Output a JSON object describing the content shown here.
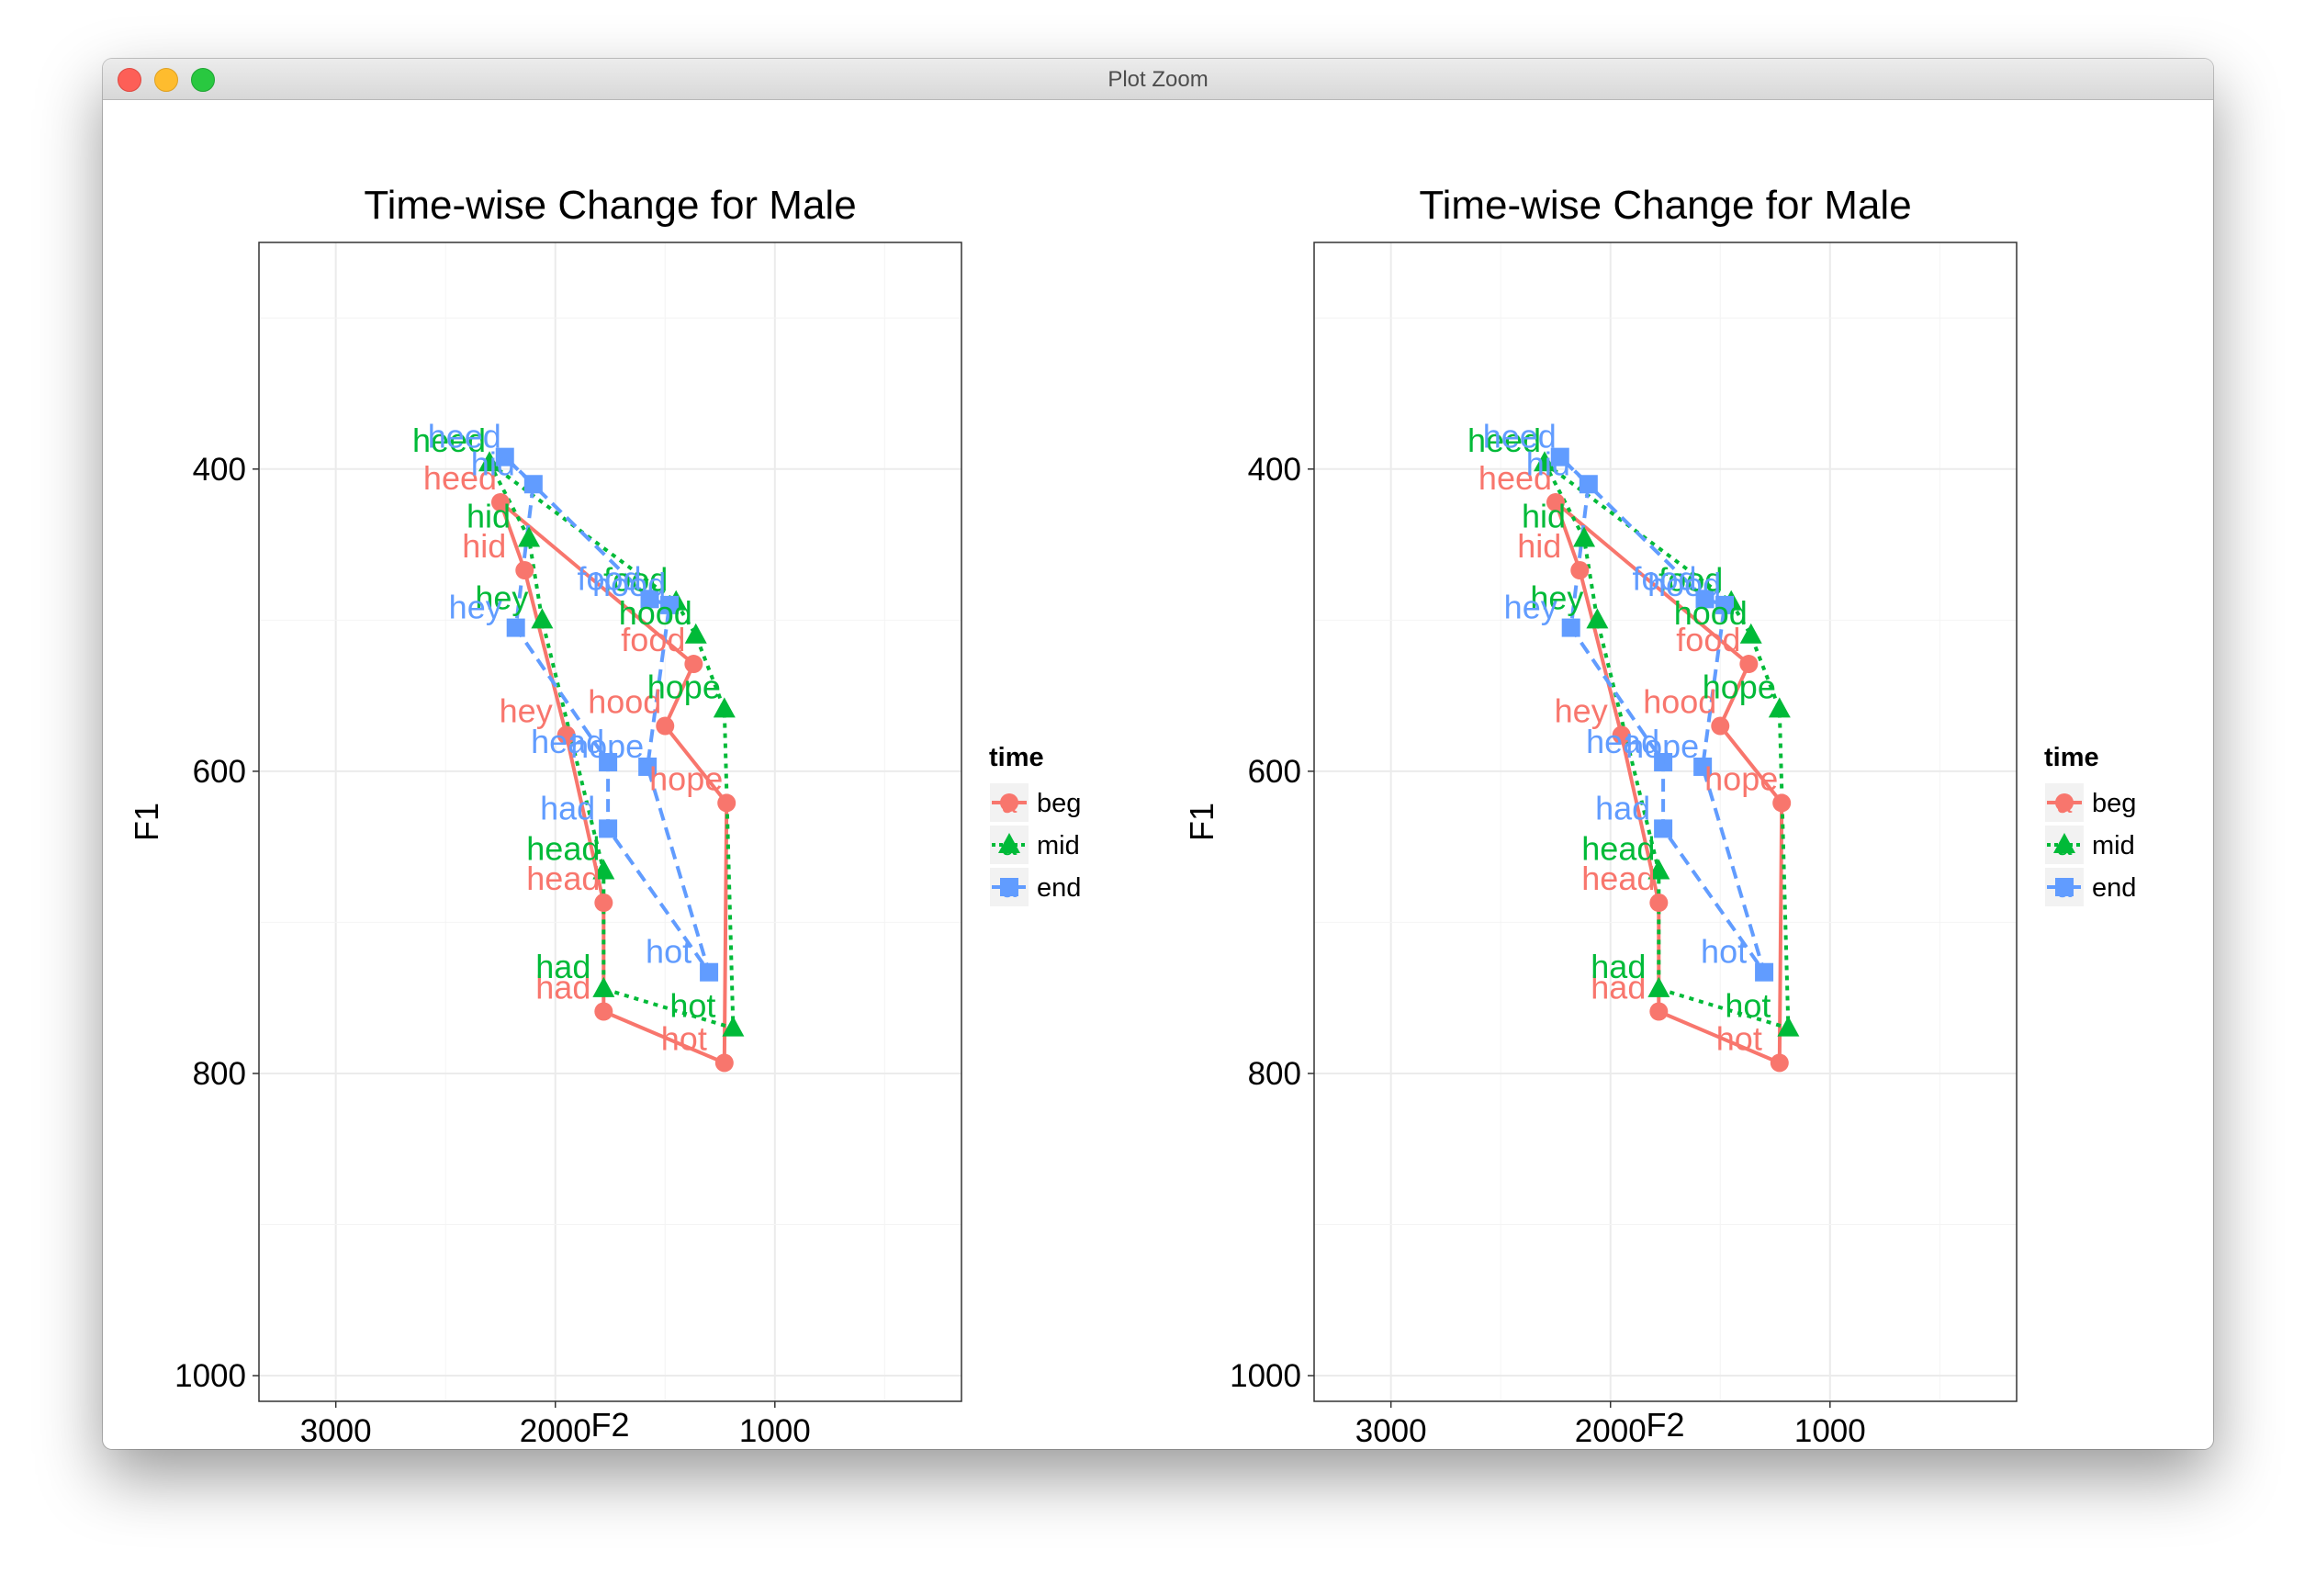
{
  "window": {
    "title": "Plot Zoom"
  },
  "palette": {
    "beg": "#F8766D",
    "mid": "#00BA38",
    "end": "#619CFF"
  },
  "legend": {
    "title": "time",
    "items": [
      {
        "key": "beg",
        "label": "beg",
        "glyph": "a",
        "shape": "circle",
        "dash": "solid"
      },
      {
        "key": "mid",
        "label": "mid",
        "glyph": "a",
        "shape": "triangle",
        "dash": "dotted"
      },
      {
        "key": "end",
        "label": "end",
        "glyph": "a",
        "shape": "square",
        "dash": "dashed"
      }
    ]
  },
  "chart_data": [
    {
      "type": "line",
      "title": "Time-wise Change for Male",
      "xlabel": "F2",
      "ylabel": "F1",
      "x_reversed": true,
      "y_reversed": true,
      "xlim": [
        3350,
        150
      ],
      "ylim": [
        1017,
        250
      ],
      "xticks": [
        3000,
        2000,
        1000
      ],
      "yticks": [
        400,
        600,
        800,
        1000
      ],
      "grid": true,
      "legend_position": "right",
      "series": [
        {
          "name": "beg",
          "points": [
            {
              "vowel": "heed",
              "x": 2250,
              "y": 422
            },
            {
              "vowel": "hid",
              "x": 2140,
              "y": 467
            },
            {
              "vowel": "hey",
              "x": 1950,
              "y": 576
            },
            {
              "vowel": "head",
              "x": 1780,
              "y": 687
            },
            {
              "vowel": "had",
              "x": 1780,
              "y": 759
            },
            {
              "vowel": "hot",
              "x": 1230,
              "y": 793
            },
            {
              "vowel": "hope",
              "x": 1220,
              "y": 621
            },
            {
              "vowel": "hood",
              "x": 1500,
              "y": 570
            },
            {
              "vowel": "food",
              "x": 1370,
              "y": 529
            }
          ]
        },
        {
          "name": "mid",
          "points": [
            {
              "vowel": "heed",
              "x": 2300,
              "y": 396
            },
            {
              "vowel": "hid",
              "x": 2120,
              "y": 446
            },
            {
              "vowel": "hey",
              "x": 2060,
              "y": 500
            },
            {
              "vowel": "head",
              "x": 1780,
              "y": 666
            },
            {
              "vowel": "had",
              "x": 1780,
              "y": 744
            },
            {
              "vowel": "hot",
              "x": 1190,
              "y": 770
            },
            {
              "vowel": "hope",
              "x": 1230,
              "y": 559
            },
            {
              "vowel": "hood",
              "x": 1360,
              "y": 510
            },
            {
              "vowel": "food",
              "x": 1450,
              "y": 488
            }
          ]
        },
        {
          "name": "end",
          "points": [
            {
              "vowel": "heed",
              "x": 2230,
              "y": 392
            },
            {
              "vowel": "hid",
              "x": 2100,
              "y": 410
            },
            {
              "vowel": "hey",
              "x": 2180,
              "y": 505
            },
            {
              "vowel": "head",
              "x": 1760,
              "y": 594
            },
            {
              "vowel": "had",
              "x": 1760,
              "y": 638
            },
            {
              "vowel": "hot",
              "x": 1300,
              "y": 733
            },
            {
              "vowel": "hope",
              "x": 1580,
              "y": 597
            },
            {
              "vowel": "hood",
              "x": 1480,
              "y": 490
            },
            {
              "vowel": "food",
              "x": 1570,
              "y": 486
            }
          ]
        }
      ]
    },
    {
      "type": "line",
      "title": "Time-wise Change for Male",
      "xlabel": "F2",
      "ylabel": "F1",
      "x_reversed": true,
      "y_reversed": true,
      "xlim": [
        3350,
        150
      ],
      "ylim": [
        1017,
        250
      ],
      "xticks": [
        3000,
        2000,
        1000
      ],
      "yticks": [
        400,
        600,
        800,
        1000
      ],
      "grid": true,
      "legend_position": "right",
      "series": [
        {
          "name": "beg",
          "points": [
            {
              "vowel": "heed",
              "x": 2250,
              "y": 422
            },
            {
              "vowel": "hid",
              "x": 2140,
              "y": 467
            },
            {
              "vowel": "hey",
              "x": 1950,
              "y": 576
            },
            {
              "vowel": "head",
              "x": 1780,
              "y": 687
            },
            {
              "vowel": "had",
              "x": 1780,
              "y": 759
            },
            {
              "vowel": "hot",
              "x": 1230,
              "y": 793
            },
            {
              "vowel": "hope",
              "x": 1220,
              "y": 621
            },
            {
              "vowel": "hood",
              "x": 1500,
              "y": 570
            },
            {
              "vowel": "food",
              "x": 1370,
              "y": 529
            }
          ]
        },
        {
          "name": "mid",
          "points": [
            {
              "vowel": "heed",
              "x": 2300,
              "y": 396
            },
            {
              "vowel": "hid",
              "x": 2120,
              "y": 446
            },
            {
              "vowel": "hey",
              "x": 2060,
              "y": 500
            },
            {
              "vowel": "head",
              "x": 1780,
              "y": 666
            },
            {
              "vowel": "had",
              "x": 1780,
              "y": 744
            },
            {
              "vowel": "hot",
              "x": 1190,
              "y": 770
            },
            {
              "vowel": "hope",
              "x": 1230,
              "y": 559
            },
            {
              "vowel": "hood",
              "x": 1360,
              "y": 510
            },
            {
              "vowel": "food",
              "x": 1450,
              "y": 488
            }
          ]
        },
        {
          "name": "end",
          "points": [
            {
              "vowel": "heed",
              "x": 2230,
              "y": 392
            },
            {
              "vowel": "hid",
              "x": 2100,
              "y": 410
            },
            {
              "vowel": "hey",
              "x": 2180,
              "y": 505
            },
            {
              "vowel": "head",
              "x": 1760,
              "y": 594
            },
            {
              "vowel": "had",
              "x": 1760,
              "y": 638
            },
            {
              "vowel": "hot",
              "x": 1300,
              "y": 733
            },
            {
              "vowel": "hope",
              "x": 1580,
              "y": 597
            },
            {
              "vowel": "hood",
              "x": 1480,
              "y": 490
            },
            {
              "vowel": "food",
              "x": 1570,
              "y": 486
            }
          ]
        }
      ]
    }
  ]
}
